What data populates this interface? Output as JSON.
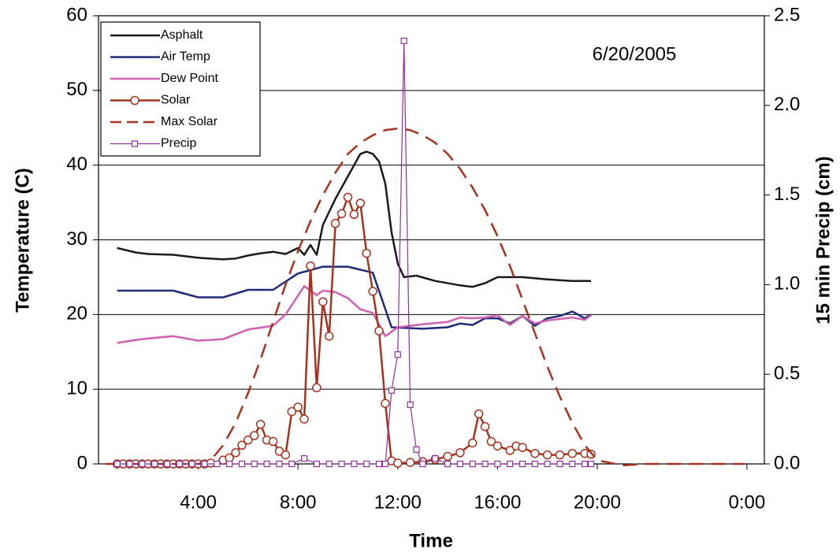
{
  "chart_data": {
    "type": "line",
    "annotation": "6/20/2005",
    "x_label": "Time",
    "y_label": "Temperature (C)",
    "y2_label": "15 min Precip (cm)",
    "xlim": [
      0,
      26.7
    ],
    "xticks": [
      {
        "value": 4,
        "label": "4:00"
      },
      {
        "value": 8,
        "label": "8:00"
      },
      {
        "value": 12,
        "label": "12:00"
      },
      {
        "value": 16,
        "label": "16:00"
      },
      {
        "value": 20,
        "label": "20:00"
      },
      {
        "value": 26,
        "label": "0:00"
      }
    ],
    "ylim": [
      0,
      60
    ],
    "yticks": [
      0,
      10,
      20,
      30,
      40,
      50,
      60
    ],
    "y2lim": [
      0,
      2.5
    ],
    "y2ticks": [
      {
        "value": 0,
        "label": "0.0"
      },
      0.5,
      {
        "value": 1,
        "label": "1.0"
      },
      1.5,
      {
        "value": 2,
        "label": "2.0"
      },
      2.5
    ],
    "grid": true,
    "legend": "upper left",
    "series": [
      {
        "name": "Asphalt",
        "color": "#1a1a1a",
        "width": 2.5,
        "x": [
          0.75,
          1.5,
          2,
          3,
          4,
          5,
          5.5,
          6,
          6.5,
          7,
          7.5,
          8,
          8.25,
          8.5,
          8.75,
          9,
          9.5,
          10,
          10.5,
          10.75,
          11,
          11.25,
          11.5,
          11.75,
          12,
          12.25,
          12.75,
          13.5,
          14.5,
          15,
          15.5,
          16,
          17,
          18,
          19,
          19.75
        ],
        "values": [
          28.9,
          28.3,
          28.1,
          28.0,
          27.6,
          27.4,
          27.5,
          27.9,
          28.2,
          28.4,
          28.1,
          28.9,
          28.0,
          29.3,
          28.0,
          32,
          35.5,
          38.5,
          41.5,
          41.8,
          41.5,
          40.5,
          37.5,
          31,
          26.8,
          25,
          25.2,
          24.5,
          23.9,
          23.7,
          24.2,
          25,
          25,
          24.7,
          24.5,
          24.5
        ]
      },
      {
        "name": "Air Temp",
        "color": "#1f2a7a",
        "width": 2.5,
        "x": [
          0.75,
          2,
          3,
          4,
          5,
          6,
          7,
          8,
          9,
          10,
          11,
          11.75,
          13,
          14,
          14.5,
          15,
          15.5,
          16,
          16.5,
          17,
          17.5,
          18,
          18.5,
          19,
          19.5,
          19.75
        ],
        "values": [
          23.2,
          23.2,
          23.2,
          22.3,
          22.3,
          23.3,
          23.3,
          25.5,
          26.4,
          26.4,
          25.6,
          18.3,
          18.1,
          18.3,
          18.8,
          18.6,
          19.5,
          19.5,
          18.8,
          19.8,
          18.5,
          19.5,
          19.8,
          20.4,
          19.5,
          20
        ]
      },
      {
        "name": "Dew Point",
        "color": "#d060b0",
        "width": 2.5,
        "x": [
          0.75,
          1.5,
          2,
          3,
          4,
          5,
          6,
          7,
          7.5,
          8.25,
          8.75,
          9,
          9.5,
          10,
          10.5,
          11,
          11.5,
          12,
          13,
          14,
          14.5,
          15,
          15.5,
          16,
          16.5,
          17,
          17.5,
          18,
          19,
          19.5,
          19.75
        ],
        "values": [
          16.2,
          16.6,
          16.8,
          17.1,
          16.5,
          16.7,
          18,
          18.5,
          20,
          23.8,
          22.6,
          23.2,
          23,
          22.2,
          20.7,
          20.2,
          17.1,
          18.3,
          18.7,
          19.0,
          19.6,
          19.5,
          19.6,
          19.9,
          18.6,
          19.8,
          18.8,
          19.2,
          19.6,
          19.3,
          19.9
        ]
      },
      {
        "name": "Solar",
        "color": "#a8321e",
        "width": 2.5,
        "marker": "circle",
        "x": [
          0.75,
          1,
          1.25,
          1.5,
          1.75,
          2,
          2.25,
          2.5,
          2.75,
          3,
          3.25,
          3.5,
          3.75,
          4,
          4.25,
          4.5,
          5,
          5.25,
          5.5,
          5.75,
          6,
          6.25,
          6.5,
          6.75,
          7,
          7.25,
          7.5,
          7.75,
          8,
          8.25,
          8.5,
          8.75,
          9,
          9.25,
          9.5,
          9.75,
          10,
          10.25,
          10.5,
          10.75,
          11,
          11.25,
          11.5,
          11.75,
          12,
          12.5,
          13,
          13.5,
          14,
          14.5,
          15,
          15.25,
          15.5,
          15.75,
          16,
          16.5,
          16.75,
          17,
          17.5,
          18,
          18.5,
          19,
          19.5,
          19.75
        ],
        "values": [
          0,
          0,
          0,
          0,
          0,
          0,
          0,
          0,
          0,
          0,
          0,
          0,
          0,
          0,
          0,
          0.1,
          0.5,
          0.8,
          1.5,
          2.5,
          3.2,
          3.8,
          5.3,
          3.2,
          3.0,
          1.7,
          1.2,
          7.0,
          7.6,
          6.0,
          26.5,
          10.2,
          21.7,
          17.1,
          32.2,
          33.5,
          35.7,
          33.4,
          34.9,
          28.2,
          23.1,
          17.8,
          8.1,
          0.4,
          0.1,
          0.2,
          0.3,
          0.6,
          1.0,
          1.5,
          2.8,
          6.7,
          5.0,
          3.0,
          2.4,
          1.8,
          2.4,
          2.2,
          1.4,
          1.2,
          1.2,
          1.4,
          1.4,
          1.3
        ]
      },
      {
        "name": "Max Solar",
        "color": "#a8321e",
        "width": 2.5,
        "dash": true,
        "x": [
          0.3,
          4,
          4.5,
          5,
          5.5,
          6,
          6.5,
          7,
          7.5,
          8,
          8.5,
          9,
          9.5,
          10,
          10.5,
          11,
          11.5,
          12,
          12.5,
          13,
          13.5,
          14,
          14.5,
          15,
          15.5,
          16,
          16.5,
          17,
          17.5,
          18,
          18.5,
          19,
          19.5,
          20,
          21,
          22,
          25.9
        ],
        "values": [
          0,
          0,
          0.5,
          2.5,
          5.5,
          9.5,
          14,
          19,
          24,
          28.5,
          32.5,
          36,
          39,
          41.5,
          43,
          44,
          44.7,
          44.9,
          44.7,
          44,
          43,
          41.5,
          39.5,
          37,
          34,
          30.5,
          26.5,
          22,
          17.5,
          13,
          9,
          5.5,
          2.5,
          0.5,
          -0.2,
          0,
          0
        ]
      },
      {
        "name": "Precip",
        "color": "#9030a0",
        "width": 1.2,
        "marker": "square",
        "axis": "y2",
        "x": [
          0.75,
          1.25,
          1.75,
          2.25,
          2.75,
          3.25,
          3.75,
          4.25,
          4.75,
          5.25,
          5.75,
          6.25,
          6.75,
          7.25,
          7.75,
          8.25,
          8.75,
          9.25,
          9.75,
          10.25,
          10.75,
          11.25,
          11.5,
          11.75,
          12,
          12.25,
          12.5,
          12.75,
          13,
          13.5,
          14,
          14.5,
          15,
          15.5,
          16,
          16.5,
          17,
          17.5,
          18,
          18.5,
          19,
          19.5,
          19.75
        ],
        "values": [
          0,
          0,
          0,
          0,
          0,
          0,
          0,
          0,
          0,
          0,
          0,
          0,
          0,
          0,
          0,
          0.03,
          0,
          0,
          0,
          0,
          0,
          0,
          0,
          0.41,
          0.61,
          2.36,
          0.33,
          0.08,
          0,
          0.03,
          0,
          0,
          0,
          0,
          0,
          0,
          0,
          0,
          0,
          0,
          0,
          0,
          0
        ]
      }
    ]
  }
}
